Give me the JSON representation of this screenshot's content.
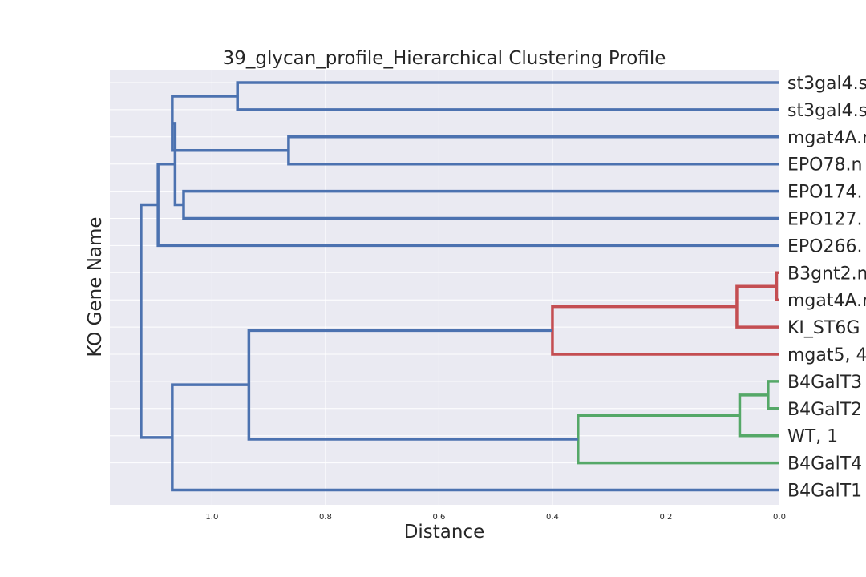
{
  "chart_data": {
    "type": "dendrogram",
    "title": "39_glycan_profile_Hierarchical Clustering Profile",
    "xlabel": "Distance",
    "ylabel": "KO Gene Name",
    "xlim": [
      1.18,
      0.0
    ],
    "xticks": [
      "1.0",
      "0.8",
      "0.6",
      "0.4",
      "0.2",
      "0.0"
    ],
    "grid": true,
    "leaves": [
      "st3gal4.s",
      "st3gal4.s",
      "mgat4A.r",
      "EPO78.n",
      "EPO174.",
      "EPO127.",
      "EPO266.",
      "B3gnt2.m",
      "mgat4A.r",
      "KI_ST6G",
      "mgat5, 4",
      "B4GalT3",
      "B4GalT2",
      "WT, 1",
      "B4GalT4",
      "B4GalT1"
    ],
    "links": [
      {
        "left": 0,
        "right": 1,
        "height": 0.955,
        "color": "blue"
      },
      {
        "left": 2,
        "right": 3,
        "height": 0.865,
        "color": "blue"
      },
      {
        "left": 4,
        "right": 5,
        "height": 1.05,
        "color": "blue"
      },
      {
        "left": 16,
        "right": 17,
        "height": 1.07,
        "color": "blue"
      },
      {
        "left": 18,
        "right": 19,
        "height": 1.065,
        "color": "blue"
      },
      {
        "left": 20,
        "right": 6,
        "height": 1.095,
        "color": "blue"
      },
      {
        "left": 7,
        "right": 8,
        "height": 0.005,
        "color": "red"
      },
      {
        "left": 22,
        "right": 9,
        "height": 0.075,
        "color": "red"
      },
      {
        "left": 23,
        "right": 10,
        "height": 0.4,
        "color": "red"
      },
      {
        "left": 11,
        "right": 12,
        "height": 0.02,
        "color": "green"
      },
      {
        "left": 25,
        "right": 13,
        "height": 0.07,
        "color": "green"
      },
      {
        "left": 26,
        "right": 14,
        "height": 0.355,
        "color": "green"
      },
      {
        "left": 24,
        "right": 27,
        "height": 0.935,
        "color": "blue"
      },
      {
        "left": 28,
        "right": 15,
        "height": 1.07,
        "color": "blue"
      },
      {
        "left": 21,
        "right": 29,
        "height": 1.125,
        "color": "blue"
      }
    ],
    "colors": {
      "blue": "#4c72b0",
      "red": "#c44e52",
      "green": "#55a868"
    }
  }
}
